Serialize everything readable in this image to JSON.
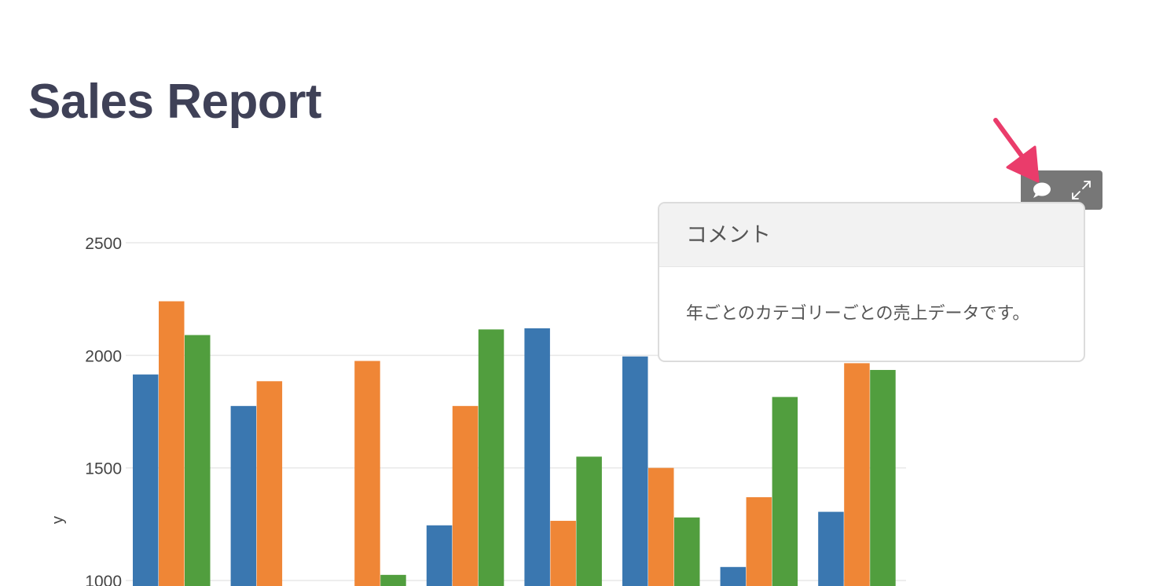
{
  "page": {
    "title": "Sales Report"
  },
  "toolbar": {
    "comment_icon": "comment-icon",
    "expand_icon": "expand-icon"
  },
  "comment_popover": {
    "header": "コメント",
    "body": "年ごとのカテゴリーごとの売上データです。"
  },
  "annotation": {
    "arrow_color": "#ea3c6b"
  },
  "chart_data": {
    "type": "bar",
    "ylabel": "y",
    "xlabel": "",
    "ylim": [
      1000,
      2500
    ],
    "yticks": [
      2500,
      2000,
      1500,
      1000
    ],
    "grid": true,
    "group_count": 8,
    "series": [
      {
        "color": "#3a77b0",
        "values": [
          1915,
          1775,
          null,
          1245,
          2120,
          1995,
          1060,
          1305
        ]
      },
      {
        "color": "#ef8636",
        "values": [
          2240,
          1885,
          1975,
          1775,
          1265,
          1500,
          1370,
          1965
        ]
      },
      {
        "color": "#519e3e",
        "values": [
          2090,
          null,
          1025,
          2115,
          1550,
          1280,
          1815,
          1935
        ]
      }
    ]
  }
}
